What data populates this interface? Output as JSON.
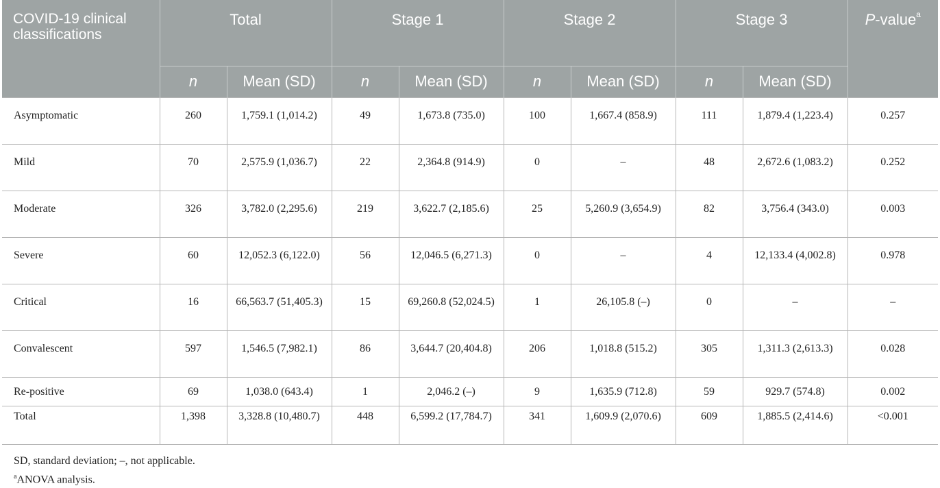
{
  "header": {
    "classification": "COVID-19 clinical classifications",
    "groups": [
      "Total",
      "Stage 1",
      "Stage 2",
      "Stage 3"
    ],
    "pvalue_label": "P-value",
    "pvalue_italic": "P",
    "pvalue_rest": "-value",
    "pvalue_sup": "a",
    "n_label": "n",
    "mean_label": "Mean (SD)"
  },
  "rows": [
    {
      "label": "Asymptomatic",
      "total_n": "260",
      "total_mean": "1,759.1 (1,014.2)",
      "s1_n": "49",
      "s1_mean": "1,673.8 (735.0)",
      "s2_n": "100",
      "s2_mean": "1,667.4 (858.9)",
      "s3_n": "111",
      "s3_mean": "1,879.4 (1,223.4)",
      "p": "0.257"
    },
    {
      "label": "Mild",
      "total_n": "70",
      "total_mean": "2,575.9 (1,036.7)",
      "s1_n": "22",
      "s1_mean": "2,364.8 (914.9)",
      "s2_n": "0",
      "s2_mean": "–",
      "s3_n": "48",
      "s3_mean": "2,672.6 (1,083.2)",
      "p": "0.252"
    },
    {
      "label": "Moderate",
      "total_n": "326",
      "total_mean": "3,782.0 (2,295.6)",
      "s1_n": "219",
      "s1_mean": "3,622.7 (2,185.6)",
      "s2_n": "25",
      "s2_mean": "5,260.9 (3,654.9)",
      "s3_n": "82",
      "s3_mean": "3,756.4 (343.0)",
      "p": "0.003"
    },
    {
      "label": "Severe",
      "total_n": "60",
      "total_mean": "12,052.3 (6,122.0)",
      "s1_n": "56",
      "s1_mean": "12,046.5 (6,271.3)",
      "s2_n": "0",
      "s2_mean": "–",
      "s3_n": "4",
      "s3_mean": "12,133.4 (4,002.8)",
      "p": "0.978"
    },
    {
      "label": "Critical",
      "total_n": "16",
      "total_mean": "66,563.7 (51,405.3)",
      "s1_n": "15",
      "s1_mean": "69,260.8 (52,024.5)",
      "s2_n": "1",
      "s2_mean": "26,105.8 (–)",
      "s3_n": "0",
      "s3_mean": "–",
      "p": "–"
    },
    {
      "label": "Convalescent",
      "total_n": "597",
      "total_mean": "1,546.5 (7,982.1)",
      "s1_n": "86",
      "s1_mean": "3,644.7 (20,404.8)",
      "s2_n": "206",
      "s2_mean": "1,018.8 (515.2)",
      "s3_n": "305",
      "s3_mean": "1,311.3 (2,613.3)",
      "p": "0.028"
    },
    {
      "label": "Re-positive",
      "total_n": "69",
      "total_mean": "1,038.0 (643.4)",
      "s1_n": "1",
      "s1_mean": "2,046.2 (–)",
      "s2_n": "9",
      "s2_mean": "1,635.9 (712.8)",
      "s3_n": "59",
      "s3_mean": "929.7 (574.8)",
      "p": "0.002"
    },
    {
      "label": "Total",
      "total_n": "1,398",
      "total_mean": "3,328.8 (10,480.7)",
      "s1_n": "448",
      "s1_mean": "6,599.2 (17,784.7)",
      "s2_n": "341",
      "s2_mean": "1,609.9 (2,070.6)",
      "s3_n": "609",
      "s3_mean": "1,885.5 (2,414.6)",
      "p": "<0.001"
    }
  ],
  "footnotes": {
    "sd": "SD, standard deviation; –, not applicable.",
    "a_mark": "a",
    "a_text": "ANOVA analysis."
  },
  "colors": {
    "header_bg": "#9ea4a4",
    "header_text": "#ffffff"
  }
}
